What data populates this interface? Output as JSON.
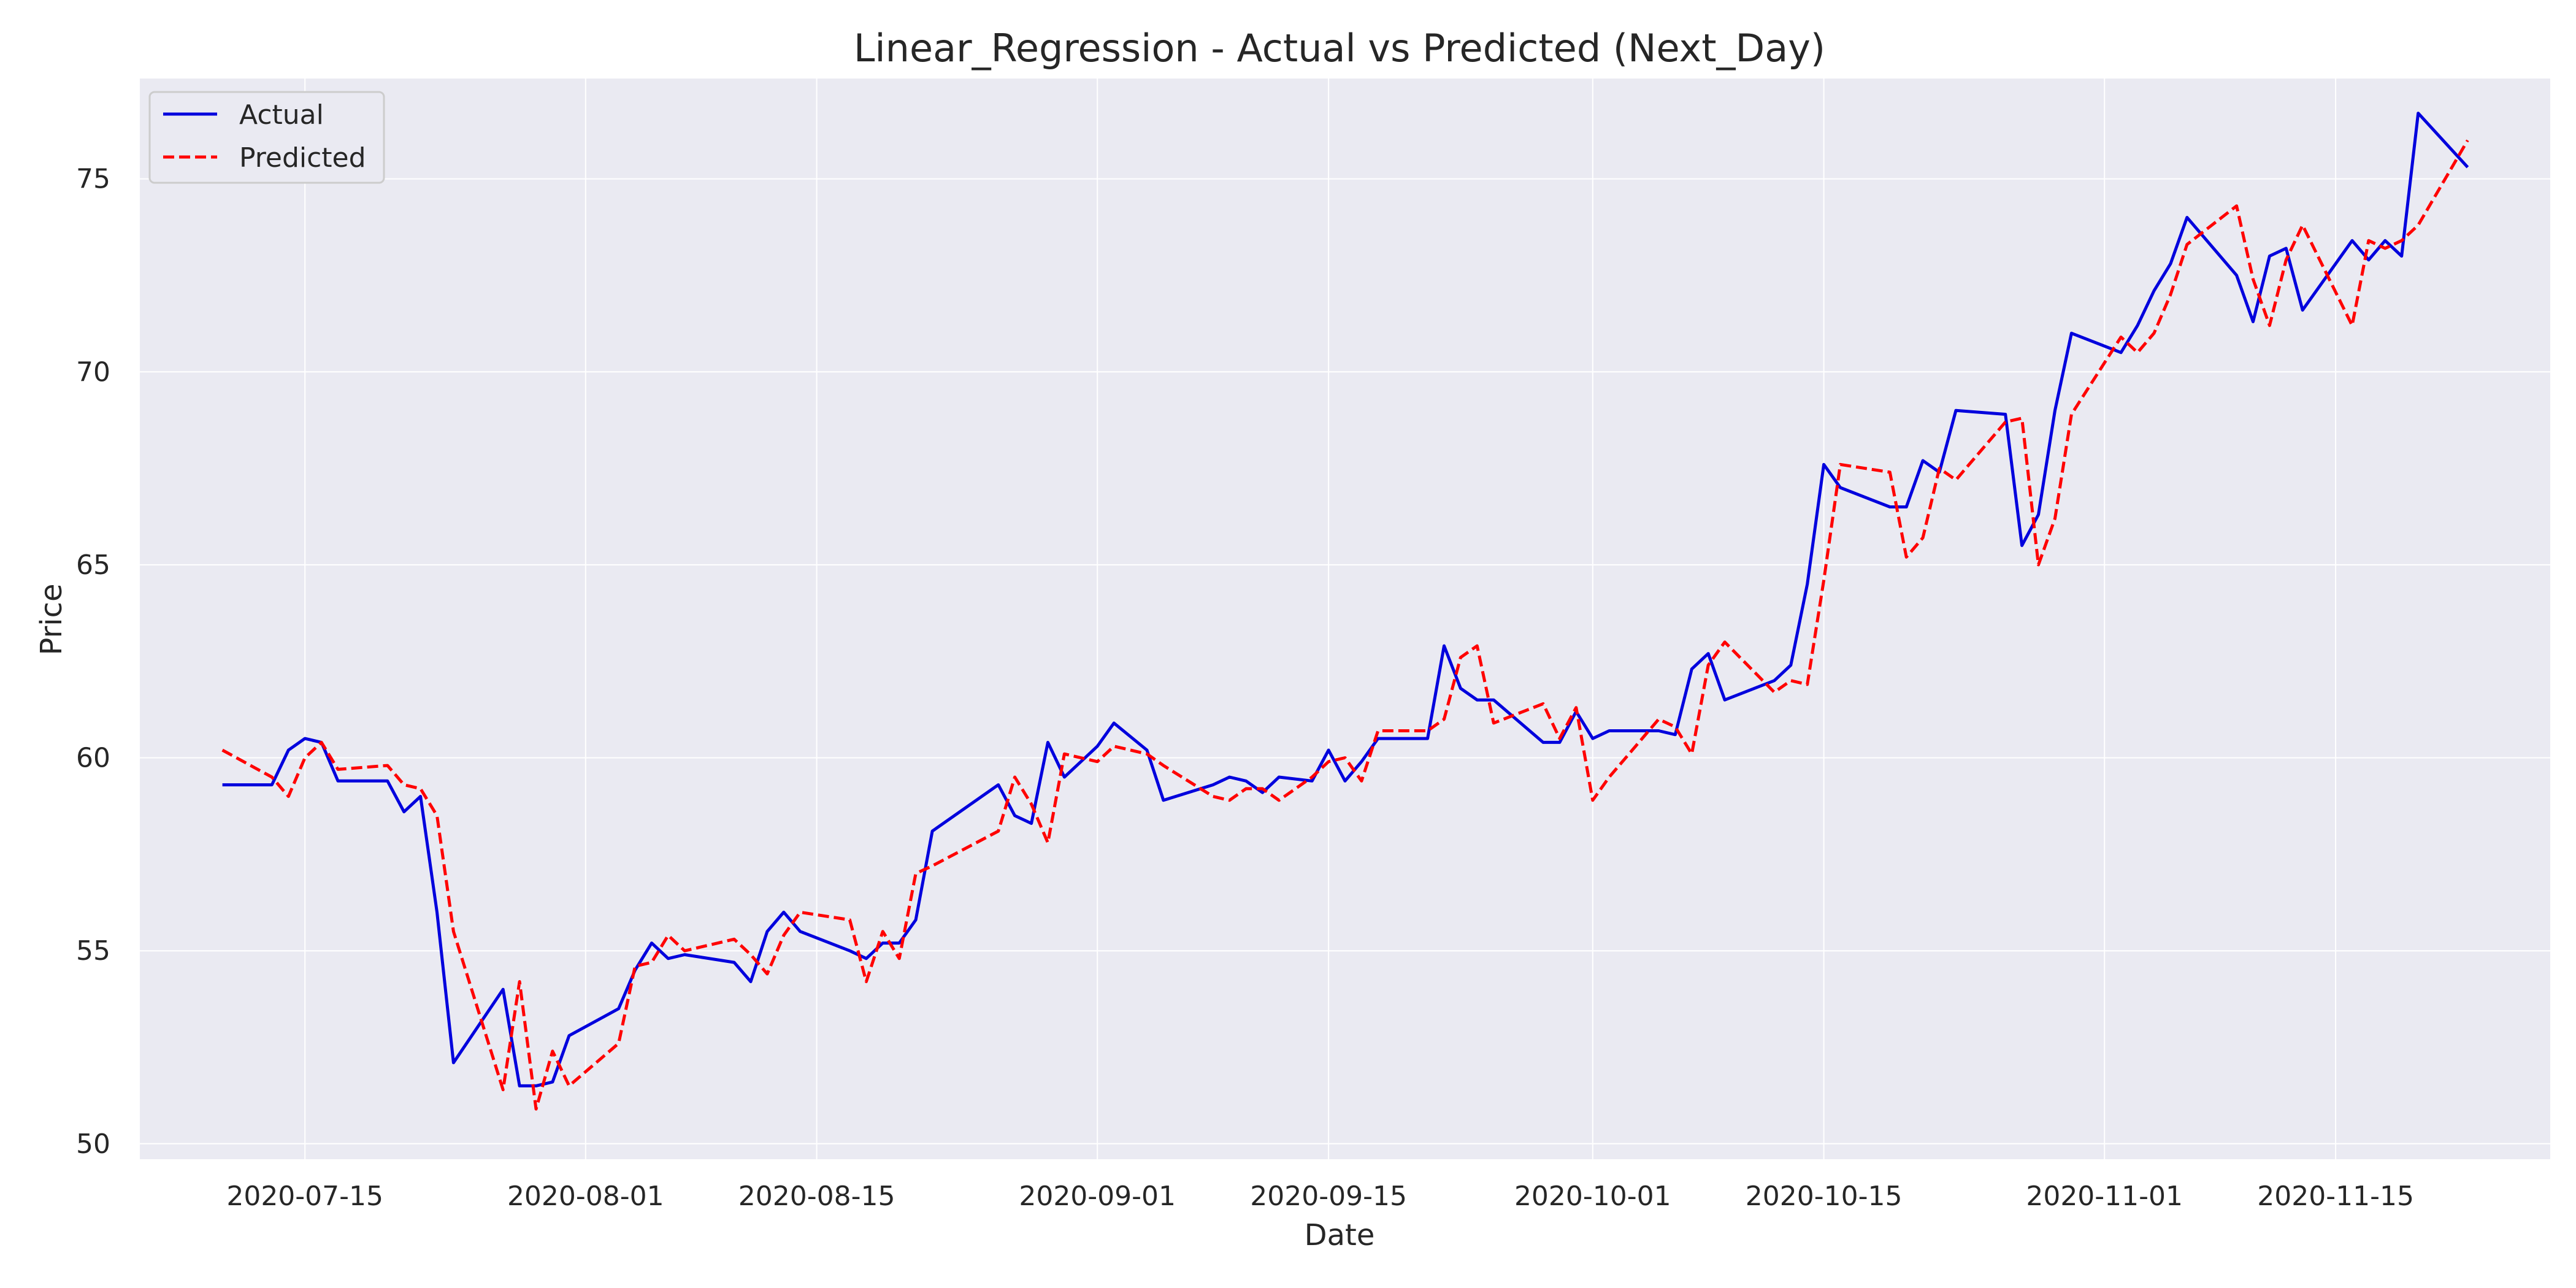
{
  "chart_data": {
    "type": "line",
    "title": "Linear_Regression - Actual vs Predicted (Next_Day)",
    "xlabel": "Date",
    "ylabel": "Price",
    "xlim": [
      "2020-07-05",
      "2020-11-28"
    ],
    "ylim": [
      49.6,
      77.6
    ],
    "x_ticks": [
      "2020-07-15",
      "2020-08-01",
      "2020-08-15",
      "2020-09-01",
      "2020-09-15",
      "2020-10-01",
      "2020-10-15",
      "2020-11-01",
      "2020-11-15"
    ],
    "y_ticks": [
      50,
      55,
      60,
      65,
      70,
      75
    ],
    "grid": true,
    "legend_position": "top-left",
    "background": "#eaeaf2",
    "series": [
      {
        "name": "Actual",
        "color": "#0000dd",
        "style": "solid",
        "points": [
          [
            "2020-07-10",
            59.3
          ],
          [
            "2020-07-13",
            59.3
          ],
          [
            "2020-07-14",
            60.2
          ],
          [
            "2020-07-15",
            60.5
          ],
          [
            "2020-07-16",
            60.4
          ],
          [
            "2020-07-17",
            59.4
          ],
          [
            "2020-07-20",
            59.4
          ],
          [
            "2020-07-21",
            58.6
          ],
          [
            "2020-07-22",
            59.0
          ],
          [
            "2020-07-23",
            56.0
          ],
          [
            "2020-07-24",
            52.1
          ],
          [
            "2020-07-27",
            54.0
          ],
          [
            "2020-07-28",
            51.5
          ],
          [
            "2020-07-29",
            51.5
          ],
          [
            "2020-07-30",
            51.6
          ],
          [
            "2020-07-31",
            52.8
          ],
          [
            "2020-08-03",
            53.5
          ],
          [
            "2020-08-04",
            54.5
          ],
          [
            "2020-08-05",
            55.2
          ],
          [
            "2020-08-06",
            54.8
          ],
          [
            "2020-08-07",
            54.9
          ],
          [
            "2020-08-10",
            54.7
          ],
          [
            "2020-08-11",
            54.2
          ],
          [
            "2020-08-12",
            55.5
          ],
          [
            "2020-08-13",
            56.0
          ],
          [
            "2020-08-14",
            55.5
          ],
          [
            "2020-08-17",
            55.0
          ],
          [
            "2020-08-18",
            54.8
          ],
          [
            "2020-08-19",
            55.2
          ],
          [
            "2020-08-20",
            55.2
          ],
          [
            "2020-08-21",
            55.8
          ],
          [
            "2020-08-22",
            58.1
          ],
          [
            "2020-08-26",
            59.3
          ],
          [
            "2020-08-27",
            58.5
          ],
          [
            "2020-08-28",
            58.3
          ],
          [
            "2020-08-29",
            60.4
          ],
          [
            "2020-08-30",
            59.5
          ],
          [
            "2020-09-01",
            60.3
          ],
          [
            "2020-09-02",
            60.9
          ],
          [
            "2020-09-04",
            60.2
          ],
          [
            "2020-09-05",
            58.9
          ],
          [
            "2020-09-08",
            59.3
          ],
          [
            "2020-09-09",
            59.5
          ],
          [
            "2020-09-10",
            59.4
          ],
          [
            "2020-09-11",
            59.1
          ],
          [
            "2020-09-12",
            59.5
          ],
          [
            "2020-09-14",
            59.4
          ],
          [
            "2020-09-15",
            60.2
          ],
          [
            "2020-09-16",
            59.4
          ],
          [
            "2020-09-17",
            59.9
          ],
          [
            "2020-09-18",
            60.5
          ],
          [
            "2020-09-21",
            60.5
          ],
          [
            "2020-09-22",
            62.9
          ],
          [
            "2020-09-23",
            61.8
          ],
          [
            "2020-09-24",
            61.5
          ],
          [
            "2020-09-25",
            61.5
          ],
          [
            "2020-09-28",
            60.4
          ],
          [
            "2020-09-29",
            60.4
          ],
          [
            "2020-09-30",
            61.2
          ],
          [
            "2020-10-01",
            60.5
          ],
          [
            "2020-10-02",
            60.7
          ],
          [
            "2020-10-05",
            60.7
          ],
          [
            "2020-10-06",
            60.6
          ],
          [
            "2020-10-07",
            62.3
          ],
          [
            "2020-10-08",
            62.7
          ],
          [
            "2020-10-09",
            61.5
          ],
          [
            "2020-10-12",
            62.0
          ],
          [
            "2020-10-13",
            62.4
          ],
          [
            "2020-10-14",
            64.5
          ],
          [
            "2020-10-15",
            67.6
          ],
          [
            "2020-10-16",
            67.0
          ],
          [
            "2020-10-19",
            66.5
          ],
          [
            "2020-10-20",
            66.5
          ],
          [
            "2020-10-21",
            67.7
          ],
          [
            "2020-10-22",
            67.4
          ],
          [
            "2020-10-23",
            69.0
          ],
          [
            "2020-10-26",
            68.9
          ],
          [
            "2020-10-27",
            65.5
          ],
          [
            "2020-10-28",
            66.3
          ],
          [
            "2020-10-29",
            69.0
          ],
          [
            "2020-10-30",
            71.0
          ],
          [
            "2020-11-02",
            70.5
          ],
          [
            "2020-11-03",
            71.2
          ],
          [
            "2020-11-04",
            72.1
          ],
          [
            "2020-11-05",
            72.8
          ],
          [
            "2020-11-06",
            74.0
          ],
          [
            "2020-11-09",
            72.5
          ],
          [
            "2020-11-10",
            71.3
          ],
          [
            "2020-11-11",
            73.0
          ],
          [
            "2020-11-12",
            73.2
          ],
          [
            "2020-11-13",
            71.6
          ],
          [
            "2020-11-16",
            73.4
          ],
          [
            "2020-11-17",
            72.9
          ],
          [
            "2020-11-18",
            73.4
          ],
          [
            "2020-11-19",
            73.0
          ],
          [
            "2020-11-20",
            76.7
          ],
          [
            "2020-11-23",
            75.3
          ]
        ]
      },
      {
        "name": "Predicted",
        "color": "#ff0000",
        "style": "dashed",
        "points": [
          [
            "2020-07-10",
            60.2
          ],
          [
            "2020-07-13",
            59.5
          ],
          [
            "2020-07-14",
            59.0
          ],
          [
            "2020-07-15",
            60.0
          ],
          [
            "2020-07-16",
            60.4
          ],
          [
            "2020-07-17",
            59.7
          ],
          [
            "2020-07-20",
            59.8
          ],
          [
            "2020-07-21",
            59.3
          ],
          [
            "2020-07-22",
            59.2
          ],
          [
            "2020-07-23",
            58.5
          ],
          [
            "2020-07-24",
            55.5
          ],
          [
            "2020-07-27",
            51.4
          ],
          [
            "2020-07-28",
            54.2
          ],
          [
            "2020-07-29",
            50.9
          ],
          [
            "2020-07-30",
            52.4
          ],
          [
            "2020-07-31",
            51.5
          ],
          [
            "2020-08-03",
            52.6
          ],
          [
            "2020-08-04",
            54.6
          ],
          [
            "2020-08-05",
            54.7
          ],
          [
            "2020-08-06",
            55.4
          ],
          [
            "2020-08-07",
            55.0
          ],
          [
            "2020-08-10",
            55.3
          ],
          [
            "2020-08-11",
            54.9
          ],
          [
            "2020-08-12",
            54.4
          ],
          [
            "2020-08-13",
            55.4
          ],
          [
            "2020-08-14",
            56.0
          ],
          [
            "2020-08-17",
            55.8
          ],
          [
            "2020-08-18",
            54.2
          ],
          [
            "2020-08-19",
            55.5
          ],
          [
            "2020-08-20",
            54.8
          ],
          [
            "2020-08-21",
            57.0
          ],
          [
            "2020-08-22",
            57.2
          ],
          [
            "2020-08-26",
            58.1
          ],
          [
            "2020-08-27",
            59.5
          ],
          [
            "2020-08-28",
            58.8
          ],
          [
            "2020-08-29",
            57.8
          ],
          [
            "2020-08-30",
            60.1
          ],
          [
            "2020-09-01",
            59.9
          ],
          [
            "2020-09-02",
            60.3
          ],
          [
            "2020-09-04",
            60.1
          ],
          [
            "2020-09-05",
            59.8
          ],
          [
            "2020-09-08",
            59.0
          ],
          [
            "2020-09-09",
            58.9
          ],
          [
            "2020-09-10",
            59.2
          ],
          [
            "2020-09-11",
            59.2
          ],
          [
            "2020-09-12",
            58.9
          ],
          [
            "2020-09-14",
            59.5
          ],
          [
            "2020-09-15",
            59.9
          ],
          [
            "2020-09-16",
            60.0
          ],
          [
            "2020-09-17",
            59.4
          ],
          [
            "2020-09-18",
            60.7
          ],
          [
            "2020-09-21",
            60.7
          ],
          [
            "2020-09-22",
            61.0
          ],
          [
            "2020-09-23",
            62.6
          ],
          [
            "2020-09-24",
            62.9
          ],
          [
            "2020-09-25",
            60.9
          ],
          [
            "2020-09-28",
            61.4
          ],
          [
            "2020-09-29",
            60.5
          ],
          [
            "2020-09-30",
            61.3
          ],
          [
            "2020-10-01",
            58.9
          ],
          [
            "2020-10-02",
            59.5
          ],
          [
            "2020-10-05",
            61.0
          ],
          [
            "2020-10-06",
            60.8
          ],
          [
            "2020-10-07",
            60.1
          ],
          [
            "2020-10-08",
            62.4
          ],
          [
            "2020-10-09",
            63.0
          ],
          [
            "2020-10-12",
            61.7
          ],
          [
            "2020-10-13",
            62.0
          ],
          [
            "2020-10-14",
            61.9
          ],
          [
            "2020-10-15",
            64.6
          ],
          [
            "2020-10-16",
            67.6
          ],
          [
            "2020-10-19",
            67.4
          ],
          [
            "2020-10-20",
            65.2
          ],
          [
            "2020-10-21",
            65.7
          ],
          [
            "2020-10-22",
            67.5
          ],
          [
            "2020-10-23",
            67.2
          ],
          [
            "2020-10-26",
            68.7
          ],
          [
            "2020-10-27",
            68.8
          ],
          [
            "2020-10-28",
            65.0
          ],
          [
            "2020-10-29",
            66.2
          ],
          [
            "2020-10-30",
            68.9
          ],
          [
            "2020-11-02",
            70.9
          ],
          [
            "2020-11-03",
            70.5
          ],
          [
            "2020-11-04",
            71.0
          ],
          [
            "2020-11-05",
            72.0
          ],
          [
            "2020-11-06",
            73.3
          ],
          [
            "2020-11-09",
            74.3
          ],
          [
            "2020-11-10",
            72.4
          ],
          [
            "2020-11-11",
            71.2
          ],
          [
            "2020-11-12",
            72.9
          ],
          [
            "2020-11-13",
            73.8
          ],
          [
            "2020-11-16",
            71.2
          ],
          [
            "2020-11-17",
            73.4
          ],
          [
            "2020-11-18",
            73.2
          ],
          [
            "2020-11-19",
            73.4
          ],
          [
            "2020-11-20",
            73.8
          ],
          [
            "2020-11-23",
            76.0
          ]
        ]
      }
    ]
  }
}
